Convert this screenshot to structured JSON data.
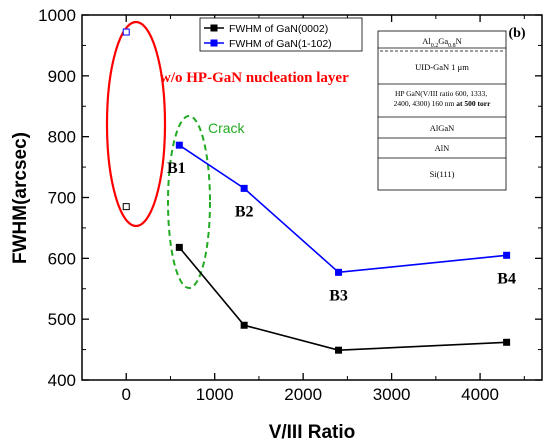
{
  "chart_data": {
    "type": "scatter",
    "xlabel": "V/III Ratio",
    "ylabel": "FWHM(arcsec)",
    "xlim": [
      -500,
      4700
    ],
    "ylim": [
      400,
      1000
    ],
    "xticks": [
      "0",
      "1000",
      "2000",
      "3000",
      "4000"
    ],
    "yticks": [
      "400",
      "500",
      "600",
      "700",
      "800",
      "900",
      "1000"
    ],
    "panel_label": "(b)",
    "legend_position": "top",
    "series": [
      {
        "name": "FWHM of GaN(0002)",
        "color": "#000000",
        "x": [
          600,
          1333,
          2400,
          4300
        ],
        "y": [
          618,
          490,
          449,
          462
        ],
        "connected": true
      },
      {
        "name": "FWHM of GaN(1-102)",
        "color": "#0000ff",
        "x": [
          600,
          1333,
          2400,
          4300
        ],
        "y": [
          786,
          715,
          577,
          605
        ],
        "connected": true
      },
      {
        "name": "",
        "color": "#000000",
        "x": [
          0
        ],
        "y": [
          685
        ],
        "connected": false,
        "open": true
      },
      {
        "name": "",
        "color": "#0000ff",
        "x": [
          0
        ],
        "y": [
          972
        ],
        "connected": false,
        "open": true
      }
    ],
    "point_labels": [
      {
        "text": "B1",
        "x": 600,
        "y": 786
      },
      {
        "text": "B2",
        "x": 1333,
        "y": 715
      },
      {
        "text": "B3",
        "x": 2400,
        "y": 577
      },
      {
        "text": "B4",
        "x": 4300,
        "y": 605
      }
    ],
    "annotations": {
      "no_nucleation": "w/o HP-GaN nucleation layer",
      "crack": "Crack",
      "no_nucleation_color": "#ff0000",
      "crack_color": "#22aa22"
    },
    "inset_layers": [
      "Al0.2Ga0.8N",
      "UID-GaN 1 μm",
      "HP GaN(V/III ratio 600, 1333, 2400, 4300) 160 nm at 500 torr",
      "AlGaN",
      "AlN",
      "Si(111)"
    ]
  }
}
